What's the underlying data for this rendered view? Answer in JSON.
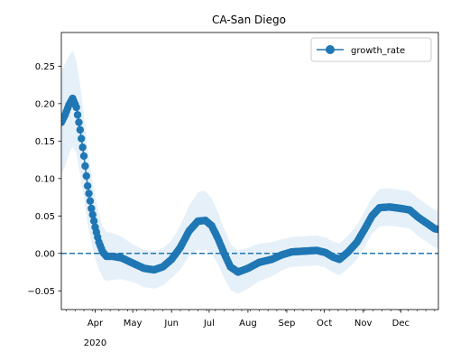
{
  "chart_data": {
    "type": "line",
    "title": "CA-San Diego",
    "xlabel": "",
    "ylabel": "",
    "ylim": [
      -0.075,
      0.295
    ],
    "x_range": [
      "2020-03-05",
      "2020-12-31"
    ],
    "y_ticks": [
      -0.05,
      0.0,
      0.05,
      0.1,
      0.15,
      0.2,
      0.25
    ],
    "y_tick_labels": [
      "−0.05",
      "0.00",
      "0.05",
      "0.10",
      "0.15",
      "0.20",
      "0.25"
    ],
    "x_tick_labels": [
      {
        "date": "2020-04-01",
        "label": "Apr"
      },
      {
        "date": "2020-05-01",
        "label": "May"
      },
      {
        "date": "2020-06-01",
        "label": "Jun"
      },
      {
        "date": "2020-07-01",
        "label": "Jul"
      },
      {
        "date": "2020-08-01",
        "label": "Aug"
      },
      {
        "date": "2020-09-01",
        "label": "Sep"
      },
      {
        "date": "2020-10-01",
        "label": "Oct"
      },
      {
        "date": "2020-11-01",
        "label": "Nov"
      },
      {
        "date": "2020-12-01",
        "label": "Dec"
      }
    ],
    "x_year_label": "2020",
    "legend": {
      "position": "top-right",
      "entries": [
        "growth_rate"
      ]
    },
    "reference_line": {
      "y": 0.0,
      "style": "dashed"
    },
    "colors": {
      "line": "#1f77b4",
      "band": "#d6e6f5",
      "ref": "#1f77b4"
    },
    "series": [
      {
        "name": "growth_rate",
        "key_points": [
          [
            "2020-03-05",
            0.175
          ],
          [
            "2020-03-08",
            0.185
          ],
          [
            "2020-03-11",
            0.198
          ],
          [
            "2020-03-14",
            0.207
          ],
          [
            "2020-03-17",
            0.195
          ],
          [
            "2020-03-20",
            0.165
          ],
          [
            "2020-03-23",
            0.13
          ],
          [
            "2020-03-26",
            0.09
          ],
          [
            "2020-03-29",
            0.06
          ],
          [
            "2020-04-01",
            0.035
          ],
          [
            "2020-04-04",
            0.015
          ],
          [
            "2020-04-07",
            0.002
          ],
          [
            "2020-04-10",
            -0.004
          ],
          [
            "2020-04-15",
            -0.004
          ],
          [
            "2020-04-22",
            -0.006
          ],
          [
            "2020-05-01",
            -0.013
          ],
          [
            "2020-05-10",
            -0.02
          ],
          [
            "2020-05-18",
            -0.022
          ],
          [
            "2020-05-25",
            -0.018
          ],
          [
            "2020-06-01",
            -0.008
          ],
          [
            "2020-06-08",
            0.008
          ],
          [
            "2020-06-15",
            0.03
          ],
          [
            "2020-06-22",
            0.043
          ],
          [
            "2020-06-28",
            0.044
          ],
          [
            "2020-07-03",
            0.037
          ],
          [
            "2020-07-08",
            0.02
          ],
          [
            "2020-07-13",
            0.0
          ],
          [
            "2020-07-18",
            -0.018
          ],
          [
            "2020-07-24",
            -0.025
          ],
          [
            "2020-08-01",
            -0.02
          ],
          [
            "2020-08-10",
            -0.012
          ],
          [
            "2020-08-20",
            -0.008
          ],
          [
            "2020-08-28",
            -0.002
          ],
          [
            "2020-09-05",
            0.002
          ],
          [
            "2020-09-15",
            0.003
          ],
          [
            "2020-09-25",
            0.004
          ],
          [
            "2020-10-02",
            0.001
          ],
          [
            "2020-10-08",
            -0.005
          ],
          [
            "2020-10-13",
            -0.008
          ],
          [
            "2020-10-20",
            0.002
          ],
          [
            "2020-10-27",
            0.015
          ],
          [
            "2020-11-02",
            0.032
          ],
          [
            "2020-11-08",
            0.05
          ],
          [
            "2020-11-14",
            0.061
          ],
          [
            "2020-11-22",
            0.062
          ],
          [
            "2020-12-01",
            0.06
          ],
          [
            "2020-12-08",
            0.058
          ],
          [
            "2020-12-15",
            0.048
          ],
          [
            "2020-12-22",
            0.04
          ],
          [
            "2020-12-28",
            0.033
          ],
          [
            "2020-12-31",
            0.032
          ]
        ],
        "band_half_width": [
          [
            "2020-03-05",
            0.07
          ],
          [
            "2020-03-20",
            0.06
          ],
          [
            "2020-04-05",
            0.035
          ],
          [
            "2020-05-01",
            0.025
          ],
          [
            "2020-06-01",
            0.025
          ],
          [
            "2020-06-25",
            0.04
          ],
          [
            "2020-07-20",
            0.03
          ],
          [
            "2020-09-01",
            0.02
          ],
          [
            "2020-10-01",
            0.02
          ],
          [
            "2020-11-15",
            0.025
          ],
          [
            "2020-12-31",
            0.025
          ]
        ]
      }
    ]
  }
}
